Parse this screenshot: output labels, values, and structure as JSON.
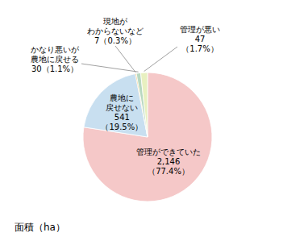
{
  "chart_data": {
    "type": "pie",
    "values": [
      2146,
      541,
      7,
      30,
      47
    ],
    "colors": [
      "#f5c8c8",
      "#c8dff0",
      "#f5a623",
      "#b8d8c0",
      "#e8f0c0"
    ],
    "value_labels": [
      [
        "管理ができていた",
        "2,146",
        "（77.4%）"
      ],
      [
        "農地に",
        "戻せない",
        "541",
        "（19.5%）"
      ],
      [
        "現地が",
        "わからないなど",
        "7（0.3%）"
      ],
      [
        "かなり悪いが",
        "農地に戻せる",
        "30（1.1%）"
      ],
      [
        "管理が悪い",
        "47",
        "（1.7%）"
      ]
    ],
    "annotations": [
      "面積（ha）"
    ]
  }
}
